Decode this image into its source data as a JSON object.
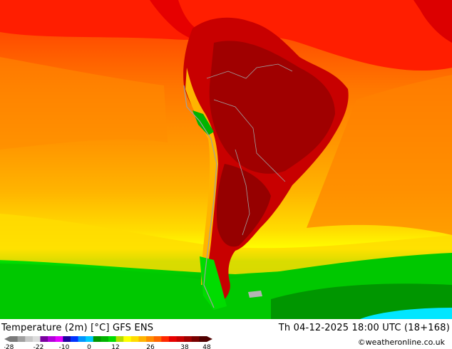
{
  "map": {
    "title": "Temperature (2m) [°C] GFS ENS",
    "valid_time": "Th 04-12-2025 18:00 UTC (18+168)",
    "copyright": "©weatheronline.co.uk"
  },
  "colorbar": {
    "tick_labels": [
      "-28",
      "-22",
      "-10",
      "0",
      "12",
      "26",
      "38",
      "48"
    ],
    "colors": [
      "#7a7a7a",
      "#a0a0a0",
      "#c8c8c8",
      "#dcdcdc",
      "#7a00a0",
      "#b400dc",
      "#e600ff",
      "#1e00a0",
      "#0032ff",
      "#0096ff",
      "#00c8ff",
      "#009600",
      "#00b400",
      "#00dc00",
      "#b4dc00",
      "#ffff00",
      "#ffdc00",
      "#ffb400",
      "#ff8c00",
      "#ff6400",
      "#ff2800",
      "#e60000",
      "#c80000",
      "#a00000",
      "#780000",
      "#500000"
    ]
  },
  "colors": {
    "ocean_warm": "#ff2800",
    "ocean_orange": "#ff8c00",
    "ocean_yellow": "#ffdc00",
    "ocean_green": "#00b400",
    "ocean_dark_green": "#009600",
    "ocean_cyan": "#00e6ff",
    "land_hot": "#c80000",
    "land_hottest": "#a00000",
    "border_gray": "#a0a0a0"
  }
}
